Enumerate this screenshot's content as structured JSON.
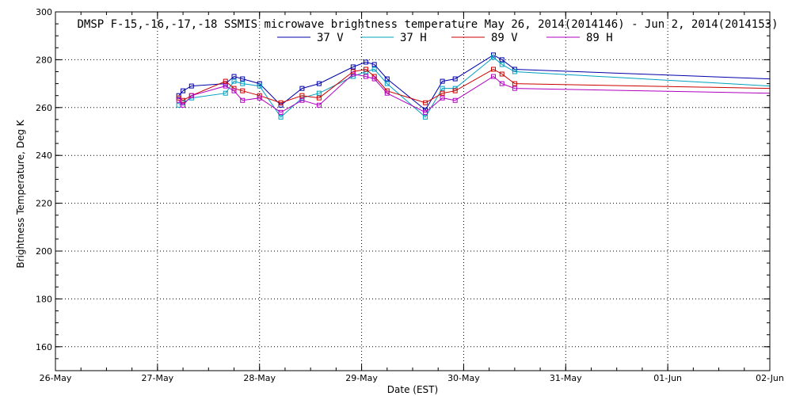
{
  "chart_data": {
    "type": "line",
    "title": "DMSP F-15,-16,-17,-18 SSMIS microwave brightness temperature May 26, 2014(2014146) - Jun  2, 2014(2014153)",
    "xlabel": "Date (EST)",
    "ylabel": "Brightness Temperature, Deg K",
    "xlim": [
      "2014-05-26",
      "2014-06-02"
    ],
    "ylim": [
      150,
      300
    ],
    "yticks": [
      160,
      180,
      200,
      220,
      240,
      260,
      280,
      300
    ],
    "xtick_labels": [
      "26-May",
      "27-May",
      "28-May",
      "29-May",
      "30-May",
      "31-May",
      "01-Jun",
      "02-Jun"
    ],
    "grid": true,
    "legend_position": "top",
    "series": [
      {
        "name": "37 V",
        "color": "#0000aa",
        "points": [
          [
            "2014-05-27 05:00",
            265
          ],
          [
            "2014-05-27 06:00",
            267
          ],
          [
            "2014-05-27 08:00",
            269
          ],
          [
            "2014-05-27 16:00",
            270
          ],
          [
            "2014-05-27 18:00",
            273
          ],
          [
            "2014-05-27 20:00",
            272
          ],
          [
            "2014-05-28 00:00",
            270
          ],
          [
            "2014-05-28 05:00",
            261
          ],
          [
            "2014-05-28 10:00",
            268
          ],
          [
            "2014-05-28 14:00",
            270
          ],
          [
            "2014-05-28 22:00",
            277
          ],
          [
            "2014-05-29 01:00",
            279
          ],
          [
            "2014-05-29 03:00",
            278
          ],
          [
            "2014-05-29 06:00",
            272
          ],
          [
            "2014-05-29 15:00",
            259
          ],
          [
            "2014-05-29 19:00",
            271
          ],
          [
            "2014-05-29 22:00",
            272
          ],
          [
            "2014-05-30 07:00",
            282
          ],
          [
            "2014-05-30 09:00",
            280
          ],
          [
            "2014-05-30 12:00",
            276
          ],
          [
            "2014-06-02 00:00",
            272
          ]
        ]
      },
      {
        "name": "37 H",
        "color": "#00a0c0",
        "points": [
          [
            "2014-05-27 05:00",
            261
          ],
          [
            "2014-05-27 06:00",
            262
          ],
          [
            "2014-05-27 08:00",
            264
          ],
          [
            "2014-05-27 16:00",
            266
          ],
          [
            "2014-05-27 18:00",
            271
          ],
          [
            "2014-05-27 20:00",
            270
          ],
          [
            "2014-05-28 00:00",
            269
          ],
          [
            "2014-05-28 05:00",
            256
          ],
          [
            "2014-05-28 10:00",
            264
          ],
          [
            "2014-05-28 14:00",
            266
          ],
          [
            "2014-05-28 22:00",
            273
          ],
          [
            "2014-05-29 01:00",
            275
          ],
          [
            "2014-05-29 03:00",
            276
          ],
          [
            "2014-05-29 06:00",
            270
          ],
          [
            "2014-05-29 15:00",
            256
          ],
          [
            "2014-05-29 19:00",
            268
          ],
          [
            "2014-05-29 22:00",
            268
          ],
          [
            "2014-05-30 07:00",
            281
          ],
          [
            "2014-05-30 09:00",
            278
          ],
          [
            "2014-05-30 12:00",
            275
          ],
          [
            "2014-06-02 00:00",
            269
          ]
        ]
      },
      {
        "name": "89 V",
        "color": "#cc0000",
        "points": [
          [
            "2014-05-27 05:00",
            264
          ],
          [
            "2014-05-27 06:00",
            263
          ],
          [
            "2014-05-27 08:00",
            265
          ],
          [
            "2014-05-27 16:00",
            271
          ],
          [
            "2014-05-27 18:00",
            268
          ],
          [
            "2014-05-27 20:00",
            267
          ],
          [
            "2014-05-28 00:00",
            265
          ],
          [
            "2014-05-28 05:00",
            262
          ],
          [
            "2014-05-28 10:00",
            265
          ],
          [
            "2014-05-28 14:00",
            264
          ],
          [
            "2014-05-28 22:00",
            275
          ],
          [
            "2014-05-29 01:00",
            276
          ],
          [
            "2014-05-29 03:00",
            273
          ],
          [
            "2014-05-29 06:00",
            267
          ],
          [
            "2014-05-29 15:00",
            262
          ],
          [
            "2014-05-29 19:00",
            266
          ],
          [
            "2014-05-29 22:00",
            267
          ],
          [
            "2014-05-30 07:00",
            276
          ],
          [
            "2014-05-30 09:00",
            274
          ],
          [
            "2014-05-30 12:00",
            270
          ],
          [
            "2014-06-02 00:00",
            268
          ]
        ]
      },
      {
        "name": "89 H",
        "color": "#b000c0",
        "points": [
          [
            "2014-05-27 05:00",
            263
          ],
          [
            "2014-05-27 06:00",
            261
          ],
          [
            "2014-05-27 08:00",
            265
          ],
          [
            "2014-05-27 16:00",
            269
          ],
          [
            "2014-05-27 18:00",
            267
          ],
          [
            "2014-05-27 20:00",
            263
          ],
          [
            "2014-05-28 00:00",
            264
          ],
          [
            "2014-05-28 05:00",
            258
          ],
          [
            "2014-05-28 10:00",
            263
          ],
          [
            "2014-05-28 14:00",
            261
          ],
          [
            "2014-05-28 22:00",
            274
          ],
          [
            "2014-05-29 01:00",
            273
          ],
          [
            "2014-05-29 03:00",
            272
          ],
          [
            "2014-05-29 06:00",
            266
          ],
          [
            "2014-05-29 15:00",
            258
          ],
          [
            "2014-05-29 19:00",
            264
          ],
          [
            "2014-05-29 22:00",
            263
          ],
          [
            "2014-05-30 07:00",
            273
          ],
          [
            "2014-05-30 09:00",
            270
          ],
          [
            "2014-05-30 12:00",
            268
          ],
          [
            "2014-06-02 00:00",
            266
          ]
        ]
      }
    ]
  }
}
